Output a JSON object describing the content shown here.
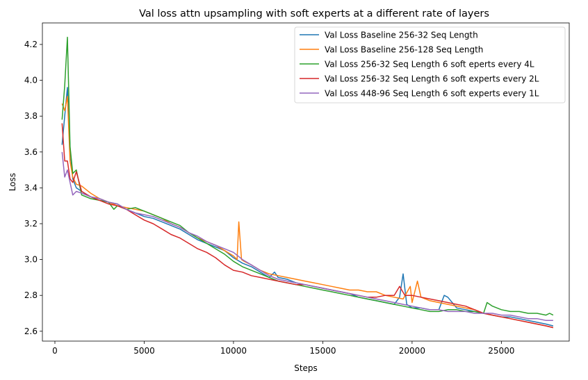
{
  "chart_data": {
    "type": "line",
    "title": "Val loss attn upsampling with soft experts at a different rate of layers",
    "xlabel": "Steps",
    "ylabel": "Loss",
    "xlim": [
      -700,
      28800
    ],
    "ylim": [
      2.545,
      4.32
    ],
    "xticks": [
      0,
      5000,
      10000,
      15000,
      20000,
      25000
    ],
    "xtick_labels": [
      "0",
      "5000",
      "10000",
      "15000",
      "20000",
      "25000"
    ],
    "yticks": [
      2.6,
      2.8,
      3.0,
      3.2,
      3.4,
      3.6,
      3.8,
      4.0,
      4.2
    ],
    "ytick_labels": [
      "2.6",
      "2.8",
      "3.0",
      "3.2",
      "3.4",
      "3.6",
      "3.8",
      "4.0",
      "4.2"
    ],
    "grid": false,
    "legend_position": "top-right",
    "series": [
      {
        "name": "Val Loss Baseline 256-32 Seq Length",
        "color": "#1f77b4",
        "x": [
          400,
          550,
          700,
          850,
          1000,
          1200,
          1500,
          2000,
          2500,
          3000,
          3500,
          4000,
          4500,
          5000,
          5500,
          6000,
          6500,
          7000,
          7500,
          8000,
          8500,
          9000,
          9500,
          10000,
          10500,
          11000,
          11500,
          12000,
          12300,
          12500,
          13000,
          13500,
          14000,
          14500,
          15000,
          15500,
          16000,
          16500,
          17000,
          17500,
          18000,
          18500,
          19000,
          19300,
          19500,
          19700,
          20000,
          20500,
          21000,
          21500,
          21800,
          22000,
          22500,
          23000,
          23500,
          24000,
          24500,
          25000,
          25500,
          26000,
          26500,
          27000,
          27500,
          27900
        ],
        "y": [
          3.64,
          3.8,
          3.96,
          3.62,
          3.45,
          3.4,
          3.38,
          3.35,
          3.34,
          3.32,
          3.31,
          3.28,
          3.26,
          3.24,
          3.23,
          3.21,
          3.19,
          3.17,
          3.14,
          3.11,
          3.09,
          3.07,
          3.05,
          3.01,
          2.98,
          2.96,
          2.93,
          2.9,
          2.93,
          2.9,
          2.89,
          2.87,
          2.86,
          2.85,
          2.84,
          2.83,
          2.82,
          2.81,
          2.79,
          2.78,
          2.77,
          2.76,
          2.75,
          2.79,
          2.92,
          2.75,
          2.73,
          2.73,
          2.72,
          2.72,
          2.8,
          2.79,
          2.73,
          2.72,
          2.71,
          2.7,
          2.69,
          2.68,
          2.68,
          2.67,
          2.66,
          2.65,
          2.64,
          2.63
        ]
      },
      {
        "name": "Val Loss Baseline 256-128 Seq Length",
        "color": "#ff7f0e",
        "x": [
          400,
          550,
          700,
          850,
          1000,
          1200,
          1500,
          2000,
          2500,
          3000,
          3500,
          4000,
          4500,
          5000,
          5500,
          6000,
          6500,
          7000,
          7500,
          8000,
          8500,
          9000,
          9500,
          10000,
          10200,
          10300,
          10450,
          10600,
          11000,
          11500,
          12000,
          12500,
          13000,
          13500,
          14000,
          14500,
          15000,
          15500,
          16000,
          16500,
          17000,
          17500,
          18000,
          18500,
          19000,
          19500,
          19900,
          20000,
          20300,
          20500,
          21000,
          21500,
          22000,
          22500,
          23000,
          23500,
          24000,
          24500,
          25000,
          25500,
          26000,
          26500,
          27000,
          27500,
          27900
        ],
        "y": [
          3.87,
          3.83,
          3.91,
          3.55,
          3.46,
          3.42,
          3.41,
          3.37,
          3.34,
          3.32,
          3.3,
          3.29,
          3.28,
          3.27,
          3.25,
          3.23,
          3.2,
          3.18,
          3.15,
          3.12,
          3.1,
          3.08,
          3.05,
          3.02,
          3.0,
          3.21,
          3.0,
          2.99,
          2.97,
          2.94,
          2.92,
          2.91,
          2.9,
          2.89,
          2.88,
          2.87,
          2.86,
          2.85,
          2.84,
          2.83,
          2.83,
          2.82,
          2.82,
          2.8,
          2.79,
          2.78,
          2.85,
          2.76,
          2.88,
          2.79,
          2.77,
          2.76,
          2.75,
          2.74,
          2.73,
          2.72,
          2.7,
          2.69,
          2.68,
          2.67,
          2.66,
          2.65,
          2.64,
          2.63,
          2.62
        ]
      },
      {
        "name": "Val Loss 256-32 Seq Length 6 soft eperts every 4L",
        "color": "#2ca02c",
        "x": [
          400,
          550,
          700,
          850,
          1000,
          1200,
          1500,
          2000,
          2500,
          3000,
          3300,
          3500,
          4000,
          4500,
          5000,
          5500,
          6000,
          6500,
          7000,
          7500,
          8000,
          8500,
          9000,
          9500,
          10000,
          10500,
          11000,
          11500,
          12000,
          12500,
          13000,
          13500,
          14000,
          14500,
          15000,
          15500,
          16000,
          16500,
          17000,
          17500,
          18000,
          18500,
          19000,
          19500,
          20000,
          20500,
          21000,
          21500,
          22000,
          22500,
          23000,
          23500,
          24000,
          24200,
          24500,
          25000,
          25500,
          26000,
          26500,
          27000,
          27500,
          27700,
          27900
        ],
        "y": [
          3.78,
          3.97,
          4.24,
          3.63,
          3.48,
          3.5,
          3.36,
          3.34,
          3.33,
          3.32,
          3.28,
          3.3,
          3.28,
          3.29,
          3.27,
          3.25,
          3.23,
          3.21,
          3.19,
          3.15,
          3.12,
          3.09,
          3.06,
          3.03,
          2.99,
          2.96,
          2.94,
          2.92,
          2.9,
          2.88,
          2.87,
          2.86,
          2.85,
          2.84,
          2.83,
          2.82,
          2.81,
          2.8,
          2.79,
          2.78,
          2.77,
          2.76,
          2.75,
          2.74,
          2.73,
          2.72,
          2.71,
          2.71,
          2.72,
          2.72,
          2.71,
          2.71,
          2.7,
          2.76,
          2.74,
          2.72,
          2.71,
          2.71,
          2.7,
          2.7,
          2.69,
          2.7,
          2.69
        ]
      },
      {
        "name": "Val Loss 256-32 Seq Length 6 soft experts every 2L",
        "color": "#d62728",
        "x": [
          400,
          550,
          700,
          850,
          1000,
          1200,
          1500,
          2000,
          2500,
          3000,
          3500,
          4000,
          4500,
          5000,
          5500,
          6000,
          6500,
          7000,
          7500,
          8000,
          8500,
          9000,
          9500,
          10000,
          10500,
          11000,
          11500,
          12000,
          12500,
          13000,
          13500,
          14000,
          14500,
          15000,
          15500,
          16000,
          16500,
          17000,
          17500,
          18000,
          18500,
          19000,
          19300,
          19600,
          20000,
          20500,
          21000,
          21500,
          22000,
          22500,
          23000,
          23500,
          24000,
          24500,
          25000,
          25500,
          26000,
          26500,
          27000,
          27500,
          27900
        ],
        "y": [
          3.76,
          3.55,
          3.55,
          3.45,
          3.43,
          3.49,
          3.38,
          3.35,
          3.33,
          3.31,
          3.3,
          3.28,
          3.25,
          3.22,
          3.2,
          3.17,
          3.14,
          3.12,
          3.09,
          3.06,
          3.04,
          3.01,
          2.97,
          2.94,
          2.93,
          2.91,
          2.9,
          2.89,
          2.88,
          2.87,
          2.86,
          2.86,
          2.85,
          2.84,
          2.83,
          2.82,
          2.81,
          2.8,
          2.79,
          2.79,
          2.8,
          2.8,
          2.85,
          2.8,
          2.8,
          2.79,
          2.78,
          2.77,
          2.76,
          2.75,
          2.74,
          2.72,
          2.7,
          2.69,
          2.68,
          2.67,
          2.66,
          2.65,
          2.64,
          2.63,
          2.62
        ]
      },
      {
        "name": "Val Loss 448-96 Seq Length 6 soft experts every 1L",
        "color": "#9467bd",
        "x": [
          400,
          550,
          700,
          850,
          1000,
          1200,
          1500,
          2000,
          2500,
          3000,
          3500,
          4000,
          4500,
          5000,
          5500,
          6000,
          6500,
          7000,
          7500,
          8000,
          8500,
          9000,
          9500,
          10000,
          10500,
          11000,
          11500,
          12000,
          12500,
          13000,
          13500,
          14000,
          14500,
          15000,
          15500,
          16000,
          16500,
          17000,
          17500,
          18000,
          18500,
          19000,
          19500,
          20000,
          20500,
          21000,
          21500,
          22000,
          22500,
          23000,
          23500,
          24000,
          24500,
          25000,
          25500,
          26000,
          26500,
          27000,
          27500,
          27900
        ],
        "y": [
          3.6,
          3.46,
          3.5,
          3.43,
          3.36,
          3.38,
          3.37,
          3.35,
          3.34,
          3.32,
          3.31,
          3.28,
          3.26,
          3.25,
          3.24,
          3.22,
          3.2,
          3.18,
          3.15,
          3.13,
          3.1,
          3.08,
          3.06,
          3.04,
          3.0,
          2.97,
          2.94,
          2.91,
          2.89,
          2.88,
          2.87,
          2.86,
          2.85,
          2.84,
          2.83,
          2.82,
          2.81,
          2.8,
          2.79,
          2.78,
          2.77,
          2.76,
          2.75,
          2.74,
          2.73,
          2.72,
          2.72,
          2.71,
          2.71,
          2.71,
          2.7,
          2.7,
          2.7,
          2.69,
          2.69,
          2.68,
          2.67,
          2.67,
          2.66,
          2.66
        ]
      }
    ]
  }
}
